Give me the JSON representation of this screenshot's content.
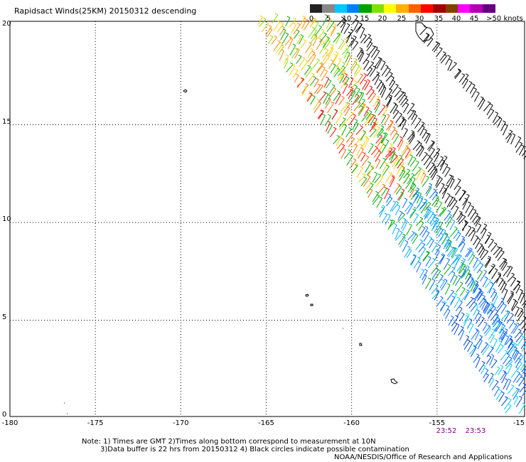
{
  "title": "Rapidsact Winds(25KM) 20150312 descending",
  "color_scale": {
    "labels": [
      "0",
      "5",
      "10",
      "15",
      "20",
      "25",
      "30",
      "35",
      "40",
      "45",
      ">50 knots"
    ],
    "colors": [
      "#222222",
      "#888888",
      "#00c8ff",
      "#0080ff",
      "#00a000",
      "#80e000",
      "#ffff00",
      "#ffb000",
      "#ff6000",
      "#ff0000",
      "#a00000",
      "#804000",
      "#ff00ff",
      "#b000b0",
      "#600080"
    ]
  },
  "map": {
    "lat_labels": [
      "0",
      "5",
      "10",
      "15",
      "20"
    ],
    "lon_labels": [
      "-180",
      "-175",
      "-170",
      "-165",
      "-160",
      "-155",
      "-15"
    ],
    "lon_range": [
      -180,
      -150
    ],
    "lat_range": [
      0,
      20
    ],
    "grid": "dotted"
  },
  "times": [
    "23:52",
    "23:53"
  ],
  "notes": {
    "line1": "Note: 1) Times are GMT 2)Times along bottom correspond to measurement at 10N",
    "line2": "3)Data buffer is 22 hrs from 20150312 4) Black circles indicate possible contamination",
    "credit": "NOAA/NESDIS/Office of Research and Applications"
  },
  "wind_swaths": [
    {
      "start": [
        -165.5,
        20.1
      ],
      "end": [
        -151.0,
        0.3
      ]
    },
    {
      "start": [
        -162.5,
        20.1
      ],
      "end": [
        -149.5,
        1.5
      ]
    },
    {
      "start": [
        -156.0,
        19.5
      ],
      "end": [
        -149.7,
        13.0
      ]
    }
  ]
}
